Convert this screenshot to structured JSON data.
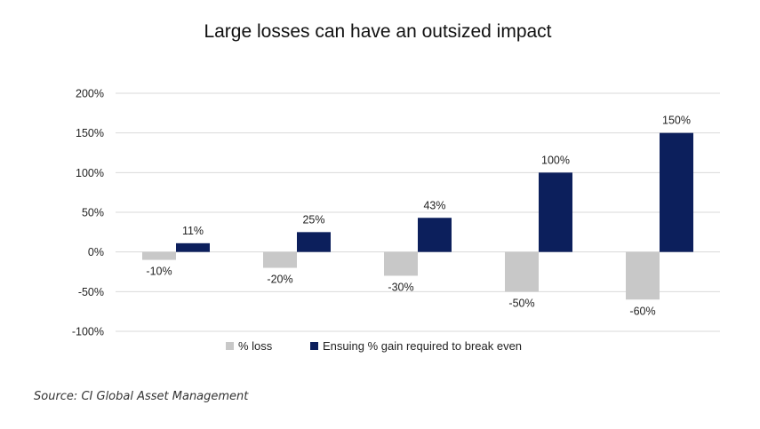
{
  "chart_data": {
    "type": "bar",
    "title": "Large losses can have an outsized impact",
    "categories": [
      "",
      "",
      "",
      "",
      ""
    ],
    "series": [
      {
        "name": "% loss",
        "values": [
          -10,
          -20,
          -30,
          -50,
          -60
        ],
        "labels": [
          "-10%",
          "-20%",
          "-30%",
          "-50%",
          "-60%"
        ],
        "color": "#c8c8c8"
      },
      {
        "name": "Ensuing % gain required to break even",
        "values": [
          11,
          25,
          43,
          100,
          150
        ],
        "labels": [
          "11%",
          "25%",
          "43%",
          "100%",
          "150%"
        ],
        "color": "#0c1f5c"
      }
    ],
    "ylim": [
      -100,
      200
    ],
    "yticks": [
      200,
      150,
      100,
      50,
      0,
      -50,
      -100
    ],
    "ytick_labels": [
      "200%",
      "150%",
      "100%",
      "50%",
      "0%",
      "-50%",
      "-100%"
    ],
    "grid": true,
    "legend_position": "bottom"
  },
  "source": "Source: CI Global Asset Management"
}
